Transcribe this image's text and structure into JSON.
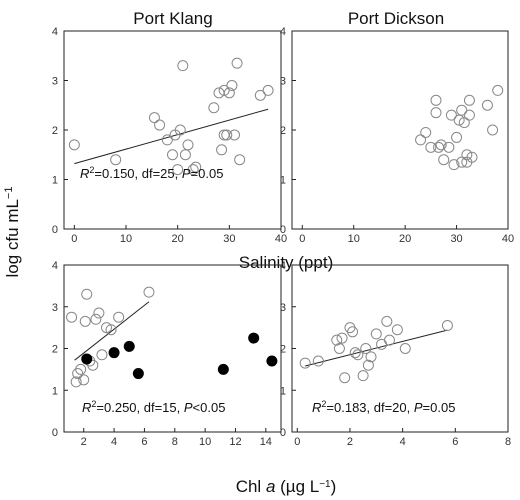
{
  "figure": {
    "ylabel": "log cfu mL",
    "ylabel_sup": "−1",
    "mid_xlabel": "Salinity (ppt)",
    "bottom_xlabel": {
      "pre": "Chl ",
      "italic": "a",
      "mid": " (µg L",
      "sup": "−1",
      "post": ")"
    }
  },
  "chart_data": [
    {
      "type": "scatter",
      "title": "Port Klang",
      "xlabel": "Salinity (ppt)",
      "xlim": [
        -2,
        40
      ],
      "ylim": [
        0,
        4
      ],
      "xticks": [
        0,
        10,
        20,
        30,
        40
      ],
      "yticks": [
        0,
        1,
        2,
        3,
        4
      ],
      "series": [
        {
          "style": "open",
          "x": [
            0,
            8,
            15.5,
            16.5,
            18,
            19,
            19.5,
            20,
            20.5,
            21,
            21.5,
            22,
            23,
            23.5,
            27,
            28,
            28.5,
            29,
            29,
            29.5,
            30,
            30.5,
            31,
            31.5,
            32,
            36,
            37.5
          ],
          "y": [
            1.7,
            1.4,
            2.25,
            2.1,
            1.8,
            1.5,
            1.9,
            1.2,
            2.0,
            3.3,
            1.5,
            1.7,
            1.2,
            1.25,
            2.45,
            2.75,
            1.6,
            1.9,
            2.8,
            1.9,
            2.75,
            2.9,
            1.9,
            3.35,
            1.4,
            2.7,
            2.8
          ]
        }
      ],
      "trend": {
        "x": [
          0,
          37.5
        ],
        "y": [
          1.32,
          2.42
        ]
      },
      "stat": {
        "pre": "",
        "r2_label": "R",
        "r2_sup": "2",
        "text": "=0.150, df=25, ",
        "p_label": "P",
        "p_text": "=0.05"
      }
    },
    {
      "type": "scatter",
      "title": "Port Dickson",
      "xlabel": "Salinity (ppt)",
      "xlim": [
        -2,
        40
      ],
      "ylim": [
        0,
        4
      ],
      "xticks": [
        0,
        10,
        20,
        30,
        40
      ],
      "yticks": [
        0,
        1,
        2,
        3,
        4
      ],
      "series": [
        {
          "style": "open",
          "x": [
            23,
            24,
            25,
            26,
            26,
            26.5,
            27,
            27.5,
            28.5,
            29,
            29.5,
            30,
            30.5,
            31,
            31,
            31.5,
            32,
            32,
            32.5,
            32.5,
            33,
            36,
            37,
            38
          ],
          "y": [
            1.8,
            1.95,
            1.65,
            2.6,
            2.35,
            1.65,
            1.7,
            1.4,
            1.65,
            2.3,
            1.3,
            1.85,
            2.2,
            1.35,
            2.4,
            2.15,
            1.5,
            1.35,
            2.6,
            2.3,
            1.45,
            2.5,
            2.0,
            2.8
          ]
        }
      ],
      "trend": null,
      "stat": null
    },
    {
      "type": "scatter",
      "title": "",
      "xlabel": "Chl a (µg L−1)",
      "xlim": [
        0.7,
        15
      ],
      "ylim": [
        0,
        4
      ],
      "xticks": [
        2,
        4,
        6,
        8,
        10,
        12,
        14
      ],
      "yticks": [
        0,
        1,
        2,
        3,
        4
      ],
      "series": [
        {
          "style": "open",
          "x": [
            1.2,
            1.5,
            1.6,
            1.8,
            2.0,
            2.1,
            2.2,
            2.4,
            2.6,
            2.8,
            3.0,
            3.2,
            3.5,
            3.8,
            4.3,
            6.3
          ],
          "y": [
            2.75,
            1.2,
            1.4,
            1.5,
            1.25,
            2.65,
            3.3,
            1.7,
            1.6,
            2.7,
            2.85,
            1.85,
            2.5,
            2.45,
            2.75,
            3.35
          ]
        },
        {
          "style": "filled",
          "x": [
            2.2,
            4.0,
            5.0,
            5.6,
            11.2,
            13.2,
            14.4
          ],
          "y": [
            1.75,
            1.9,
            2.05,
            1.4,
            1.5,
            2.25,
            1.7
          ]
        }
      ],
      "trend": {
        "x": [
          1.4,
          6.3
        ],
        "y": [
          1.72,
          3.12
        ]
      },
      "stat": {
        "pre": "",
        "r2_label": "R",
        "r2_sup": "2",
        "text": "=0.250, df=15, ",
        "p_label": "P",
        "p_text": "<0.05"
      }
    },
    {
      "type": "scatter",
      "title": "",
      "xlabel": "Chl a (µg L−1)",
      "xlim": [
        -0.2,
        8
      ],
      "ylim": [
        0,
        4
      ],
      "xticks": [
        0,
        2,
        4,
        6,
        8
      ],
      "yticks": [
        0,
        1,
        2,
        3,
        4
      ],
      "series": [
        {
          "style": "open",
          "x": [
            0.3,
            0.8,
            1.5,
            1.6,
            1.7,
            1.8,
            2.0,
            2.1,
            2.2,
            2.3,
            2.5,
            2.6,
            2.7,
            2.8,
            3.0,
            3.2,
            3.4,
            3.5,
            3.8,
            4.1,
            5.7
          ],
          "y": [
            1.65,
            1.7,
            2.2,
            2.0,
            2.25,
            1.3,
            2.5,
            2.4,
            1.9,
            1.85,
            1.35,
            2.0,
            1.6,
            1.8,
            2.35,
            2.1,
            2.65,
            2.2,
            2.45,
            2.0,
            2.55
          ]
        }
      ],
      "trend": {
        "x": [
          0.3,
          5.7
        ],
        "y": [
          1.58,
          2.44
        ]
      },
      "stat": {
        "pre": "",
        "r2_label": "R",
        "r2_sup": "2",
        "text": "=0.183, df=20, ",
        "p_label": "P",
        "p_text": "=0.05"
      }
    }
  ]
}
